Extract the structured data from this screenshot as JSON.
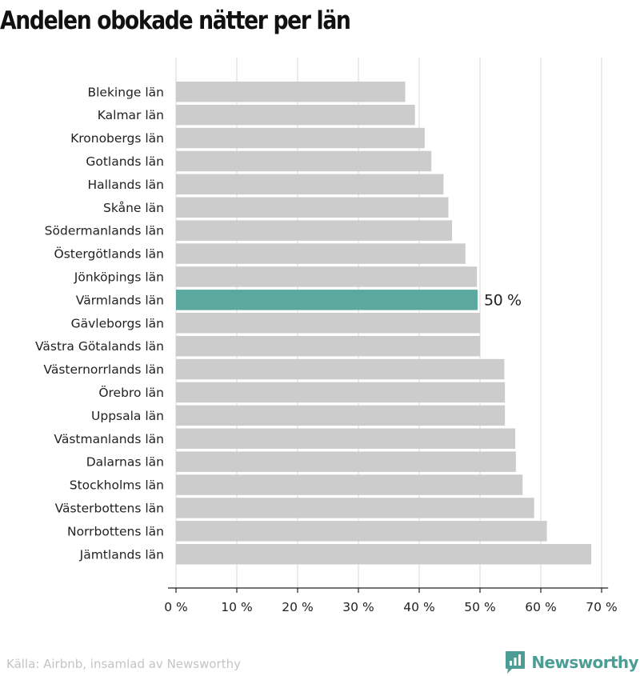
{
  "title": "Andelen obokade nätter per län",
  "source": "Källa: Airbnb, insamlad av Newsworthy",
  "brand": "Newsworthy",
  "colors": {
    "bar": "#cccccc",
    "highlight": "#5aa89e",
    "brand": "#4c9e95"
  },
  "icons": {
    "logo": "bar-chart-speech-bubble-icon"
  },
  "chart_data": {
    "type": "bar",
    "orientation": "horizontal",
    "categories": [
      "Blekinge län",
      "Kalmar län",
      "Kronobergs län",
      "Gotlands län",
      "Hallands län",
      "Skåne län",
      "Södermanlands län",
      "Östergötlands län",
      "Jönköpings län",
      "Värmlands län",
      "Gävleborgs län",
      "Västra Götalands län",
      "Västernorrlands län",
      "Örebro län",
      "Uppsala län",
      "Västmanlands län",
      "Dalarnas län",
      "Stockholms län",
      "Västerbottens län",
      "Norrbottens län",
      "Jämtlands län"
    ],
    "values": [
      37.7,
      39.3,
      40.9,
      42.0,
      44.0,
      44.8,
      45.4,
      47.6,
      49.5,
      49.6,
      50.0,
      50.0,
      54.0,
      54.1,
      54.1,
      55.8,
      55.9,
      57.0,
      58.9,
      61.0,
      68.3
    ],
    "highlight": {
      "category": "Värmlands län",
      "label": "50 %"
    },
    "xlim": [
      0,
      72
    ],
    "xticks": [
      0,
      10,
      20,
      30,
      40,
      50,
      60,
      70
    ],
    "xtick_labels": [
      "0 %",
      "10 %",
      "20 %",
      "30 %",
      "40 %",
      "50 %",
      "60 %",
      "70 %"
    ],
    "grid": true,
    "title": "Andelen obokade nätter per län",
    "xlabel": "",
    "ylabel": ""
  }
}
